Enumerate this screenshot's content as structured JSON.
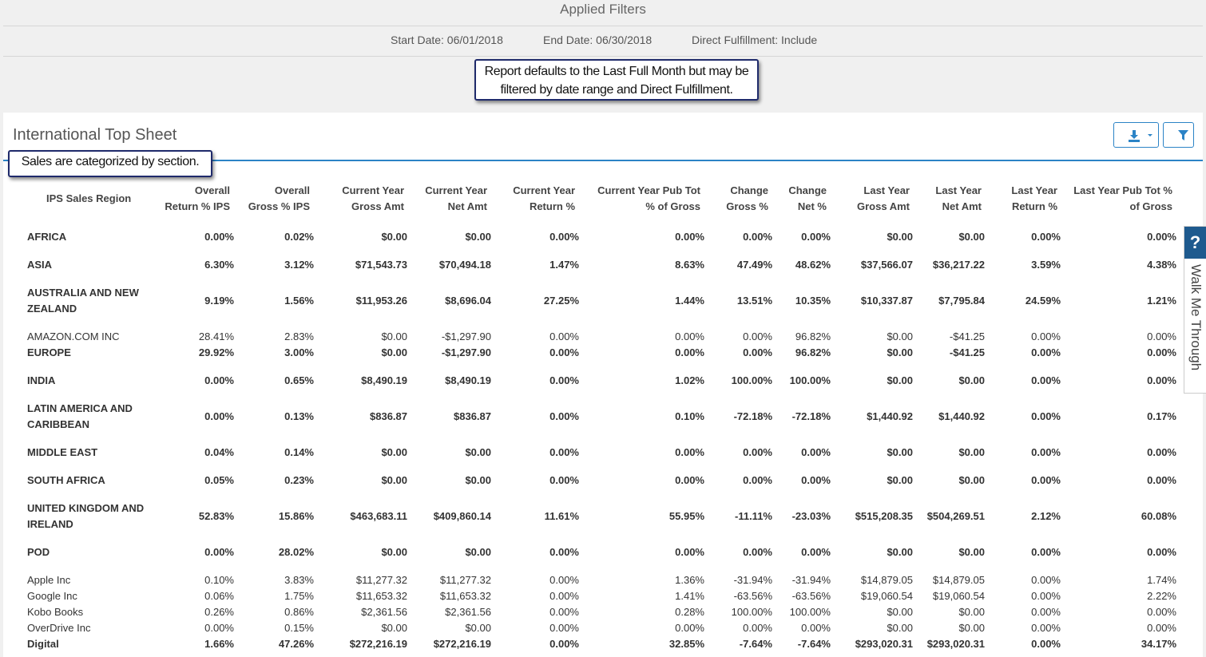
{
  "filters": {
    "title": "Applied Filters",
    "start_date": "Start Date: 06/01/2018",
    "end_date": "End Date: 06/30/2018",
    "direct_fulfillment": "Direct Fulfillment: Include"
  },
  "callouts": {
    "date_note_1": "Report defaults to the Last Full Month but may be",
    "date_note_2": "filtered by date range and Direct Fulfillment.",
    "section_note": "Sales are categorized by section."
  },
  "panel": {
    "title": "International Top Sheet",
    "export_icon": "download-icon",
    "filter_icon": "filter-icon"
  },
  "walkme": {
    "q": "?",
    "label": "Walk Me Through"
  },
  "table": {
    "headers": [
      [
        "",
        "IPS Sales Region"
      ],
      [
        "Overall",
        "Return % IPS"
      ],
      [
        "Overall",
        "Gross % IPS"
      ],
      [
        "Current Year",
        "Gross Amt"
      ],
      [
        "Current Year",
        "Net Amt"
      ],
      [
        "Current Year",
        "Return %"
      ],
      [
        "Current Year Pub Tot",
        "% of Gross"
      ],
      [
        "Change",
        "Gross %"
      ],
      [
        "Change",
        "Net %"
      ],
      [
        "Last Year",
        "Gross Amt"
      ],
      [
        "Last Year",
        "Net Amt"
      ],
      [
        "Last Year",
        "Return %"
      ],
      [
        "Last Year Pub Tot %",
        "of Gross"
      ]
    ],
    "rows": [
      {
        "label": [
          "AFRICA"
        ],
        "bold": true,
        "values": [
          "0.00%",
          "0.02%",
          "$0.00",
          "$0.00",
          "0.00%",
          "0.00%",
          "0.00%",
          "0.00%",
          "$0.00",
          "$0.00",
          "0.00%",
          "0.00%"
        ]
      },
      {
        "label": [
          "ASIA"
        ],
        "bold": true,
        "values": [
          "6.30%",
          "3.12%",
          "$71,543.73",
          "$70,494.18",
          "1.47%",
          "8.63%",
          "47.49%",
          "48.62%",
          "$37,566.07",
          "$36,217.22",
          "3.59%",
          "4.38%"
        ]
      },
      {
        "label": [
          "AUSTRALIA AND NEW",
          "ZEALAND"
        ],
        "bold": true,
        "values": [
          "9.19%",
          "1.56%",
          "$11,953.26",
          "$8,696.04",
          "27.25%",
          "1.44%",
          "13.51%",
          "10.35%",
          "$10,337.87",
          "$7,795.84",
          "24.59%",
          "1.21%"
        ]
      },
      {
        "label": [
          "AMAZON.COM INC"
        ],
        "bold": false,
        "values": [
          "28.41%",
          "2.83%",
          "$0.00",
          "-$1,297.90",
          "0.00%",
          "0.00%",
          "0.00%",
          "96.82%",
          "$0.00",
          "-$41.25",
          "0.00%",
          "0.00%"
        ]
      },
      {
        "label": [
          "EUROPE"
        ],
        "bold": true,
        "values": [
          "29.92%",
          "3.00%",
          "$0.00",
          "-$1,297.90",
          "0.00%",
          "0.00%",
          "0.00%",
          "96.82%",
          "$0.00",
          "-$41.25",
          "0.00%",
          "0.00%"
        ]
      },
      {
        "label": [
          "INDIA"
        ],
        "bold": true,
        "values": [
          "0.00%",
          "0.65%",
          "$8,490.19",
          "$8,490.19",
          "0.00%",
          "1.02%",
          "100.00%",
          "100.00%",
          "$0.00",
          "$0.00",
          "0.00%",
          "0.00%"
        ]
      },
      {
        "label": [
          "LATIN AMERICA AND",
          "CARIBBEAN"
        ],
        "bold": true,
        "values": [
          "0.00%",
          "0.13%",
          "$836.87",
          "$836.87",
          "0.00%",
          "0.10%",
          "-72.18%",
          "-72.18%",
          "$1,440.92",
          "$1,440.92",
          "0.00%",
          "0.17%"
        ]
      },
      {
        "label": [
          "MIDDLE EAST"
        ],
        "bold": true,
        "values": [
          "0.04%",
          "0.14%",
          "$0.00",
          "$0.00",
          "0.00%",
          "0.00%",
          "0.00%",
          "0.00%",
          "$0.00",
          "$0.00",
          "0.00%",
          "0.00%"
        ]
      },
      {
        "label": [
          "SOUTH AFRICA"
        ],
        "bold": true,
        "values": [
          "0.05%",
          "0.23%",
          "$0.00",
          "$0.00",
          "0.00%",
          "0.00%",
          "0.00%",
          "0.00%",
          "$0.00",
          "$0.00",
          "0.00%",
          "0.00%"
        ]
      },
      {
        "label": [
          "UNITED KINGDOM AND",
          "IRELAND"
        ],
        "bold": true,
        "values": [
          "52.83%",
          "15.86%",
          "$463,683.11",
          "$409,860.14",
          "11.61%",
          "55.95%",
          "-11.11%",
          "-23.03%",
          "$515,208.35",
          "$504,269.51",
          "2.12%",
          "60.08%"
        ]
      },
      {
        "label": [
          "POD"
        ],
        "bold": true,
        "values": [
          "0.00%",
          "28.02%",
          "$0.00",
          "$0.00",
          "0.00%",
          "0.00%",
          "0.00%",
          "0.00%",
          "$0.00",
          "$0.00",
          "0.00%",
          "0.00%"
        ]
      },
      {
        "label": [
          "Apple Inc"
        ],
        "bold": false,
        "values": [
          "0.10%",
          "3.83%",
          "$11,277.32",
          "$11,277.32",
          "0.00%",
          "1.36%",
          "-31.94%",
          "-31.94%",
          "$14,879.05",
          "$14,879.05",
          "0.00%",
          "1.74%"
        ]
      },
      {
        "label": [
          "Google Inc"
        ],
        "bold": false,
        "values": [
          "0.06%",
          "1.75%",
          "$11,653.32",
          "$11,653.32",
          "0.00%",
          "1.41%",
          "-63.56%",
          "-63.56%",
          "$19,060.54",
          "$19,060.54",
          "0.00%",
          "2.22%"
        ]
      },
      {
        "label": [
          "Kobo Books"
        ],
        "bold": false,
        "values": [
          "0.26%",
          "0.86%",
          "$2,361.56",
          "$2,361.56",
          "0.00%",
          "0.28%",
          "100.00%",
          "100.00%",
          "$0.00",
          "$0.00",
          "0.00%",
          "0.00%"
        ]
      },
      {
        "label": [
          "OverDrive Inc"
        ],
        "bold": false,
        "values": [
          "0.00%",
          "0.15%",
          "$0.00",
          "$0.00",
          "0.00%",
          "0.00%",
          "0.00%",
          "0.00%",
          "$0.00",
          "$0.00",
          "0.00%",
          "0.00%"
        ]
      },
      {
        "label": [
          "Digital"
        ],
        "bold": true,
        "values": [
          "1.66%",
          "47.26%",
          "$272,216.19",
          "$272,216.19",
          "0.00%",
          "32.85%",
          "-7.64%",
          "-7.64%",
          "$293,020.31",
          "$293,020.31",
          "0.00%",
          "34.17%"
        ]
      }
    ]
  }
}
